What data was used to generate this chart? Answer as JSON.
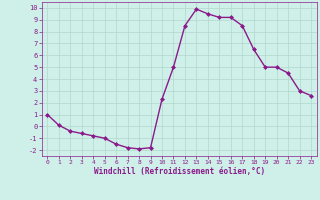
{
  "x": [
    0,
    1,
    2,
    3,
    4,
    5,
    6,
    7,
    8,
    9,
    10,
    11,
    12,
    13,
    14,
    15,
    16,
    17,
    18,
    19,
    20,
    21,
    22,
    23
  ],
  "y": [
    1.0,
    0.1,
    -0.4,
    -0.6,
    -0.8,
    -1.0,
    -1.5,
    -1.8,
    -1.9,
    -1.8,
    2.3,
    5.0,
    8.5,
    9.9,
    9.5,
    9.2,
    9.2,
    8.5,
    6.5,
    5.0,
    5.0,
    4.5,
    3.0,
    2.6
  ],
  "line_color": "#8b1a8b",
  "marker": "D",
  "markersize": 2.0,
  "linewidth": 1.0,
  "bg_color": "#cef0e8",
  "grid_color": "#b0d8cc",
  "xlabel": "Windchill (Refroidissement éolien,°C)",
  "xlabel_color": "#8b1a8b",
  "tick_color": "#8b1a8b",
  "ylim": [
    -2.5,
    10.5
  ],
  "xlim": [
    -0.5,
    23.5
  ],
  "yticks": [
    -2,
    -1,
    0,
    1,
    2,
    3,
    4,
    5,
    6,
    7,
    8,
    9,
    10
  ],
  "xticks": [
    0,
    1,
    2,
    3,
    4,
    5,
    6,
    7,
    8,
    9,
    10,
    11,
    12,
    13,
    14,
    15,
    16,
    17,
    18,
    19,
    20,
    21,
    22,
    23
  ]
}
